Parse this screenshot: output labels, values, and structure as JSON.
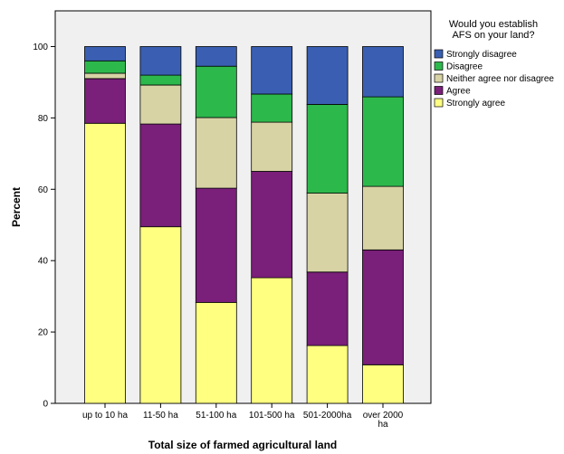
{
  "chart_data": {
    "type": "bar",
    "stacked": true,
    "xlabel": "Total size of farmed agricultural land",
    "ylabel": "Percent",
    "ylim": [
      0,
      110
    ],
    "yticks": [
      0,
      20,
      40,
      60,
      80,
      100
    ],
    "grid": false,
    "legend": {
      "title_lines": [
        "Would you establish",
        "AFS on your land?"
      ],
      "placement": "top-right"
    },
    "categories": [
      [
        "up to 10 ha"
      ],
      [
        "11-50 ha"
      ],
      [
        "51-100 ha"
      ],
      [
        "101-500 ha"
      ],
      [
        "501-2000ha"
      ],
      [
        "over 2000",
        "ha"
      ]
    ],
    "series": [
      {
        "name": "Strongly agree",
        "color": "#ffff80",
        "values": [
          78.5,
          49.5,
          28.3,
          35.2,
          16.2,
          10.8
        ]
      },
      {
        "name": "Agree",
        "color": "#7a1f7a",
        "values": [
          12.5,
          28.8,
          32.0,
          29.8,
          20.6,
          32.2
        ]
      },
      {
        "name": "Neither agree nor disagree",
        "color": "#d7d3a5",
        "values": [
          1.5,
          10.9,
          19.8,
          13.8,
          22.1,
          17.8
        ]
      },
      {
        "name": "Disagree",
        "color": "#2db84c",
        "values": [
          3.5,
          2.8,
          14.4,
          7.9,
          24.9,
          25.1
        ]
      },
      {
        "name": "Strongly disagree",
        "color": "#3a5fb2",
        "values": [
          4.0,
          8.0,
          5.5,
          13.3,
          16.2,
          14.1
        ]
      }
    ]
  }
}
